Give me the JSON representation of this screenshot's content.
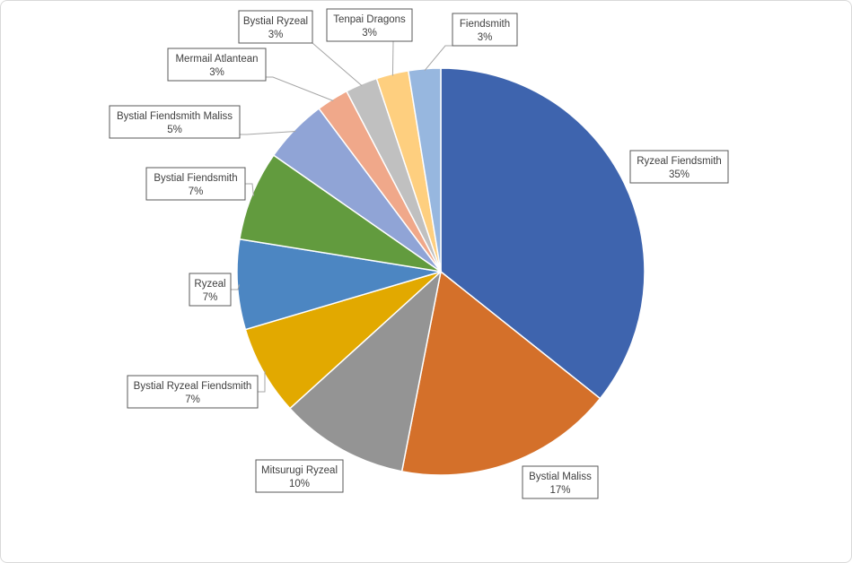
{
  "chart_data": {
    "type": "pie",
    "title": "",
    "data_label_format": "{name}\n{percent}",
    "slices": [
      {
        "name": "Ryzeal Fiendsmith",
        "value": 35,
        "label": "35%",
        "color": "#3e64ae"
      },
      {
        "name": "Bystial Maliss",
        "value": 17,
        "label": "17%",
        "color": "#d4702a"
      },
      {
        "name": "Mitsurugi Ryzeal",
        "value": 10,
        "label": "10%",
        "color": "#949494"
      },
      {
        "name": "Bystial Ryzeal Fiendsmith",
        "value": 7,
        "label": "7%",
        "color": "#e2a900"
      },
      {
        "name": "Ryzeal",
        "value": 7,
        "label": "7%",
        "color": "#4c86c2"
      },
      {
        "name": "Bystial Fiendsmith",
        "value": 7,
        "label": "7%",
        "color": "#629b3e"
      },
      {
        "name": "Bystial Fiendsmith Maliss",
        "value": 5,
        "label": "5%",
        "color": "#90a4d6"
      },
      {
        "name": "Mermail Atlantean",
        "value": 2.5,
        "label": "3%",
        "color": "#f0a88a"
      },
      {
        "name": "Bystial Ryzeal",
        "value": 2.5,
        "label": "3%",
        "color": "#c0c0c0"
      },
      {
        "name": "Tenpai Dragons",
        "value": 2.5,
        "label": "3%",
        "color": "#fecf7f"
      },
      {
        "name": "Fiendsmith",
        "value": 2.5,
        "label": "3%",
        "color": "#97b7df"
      }
    ],
    "start_angle": "12 o'clock",
    "direction": "clockwise",
    "legend": "none",
    "data_labels": "callouts outside with leader lines"
  }
}
